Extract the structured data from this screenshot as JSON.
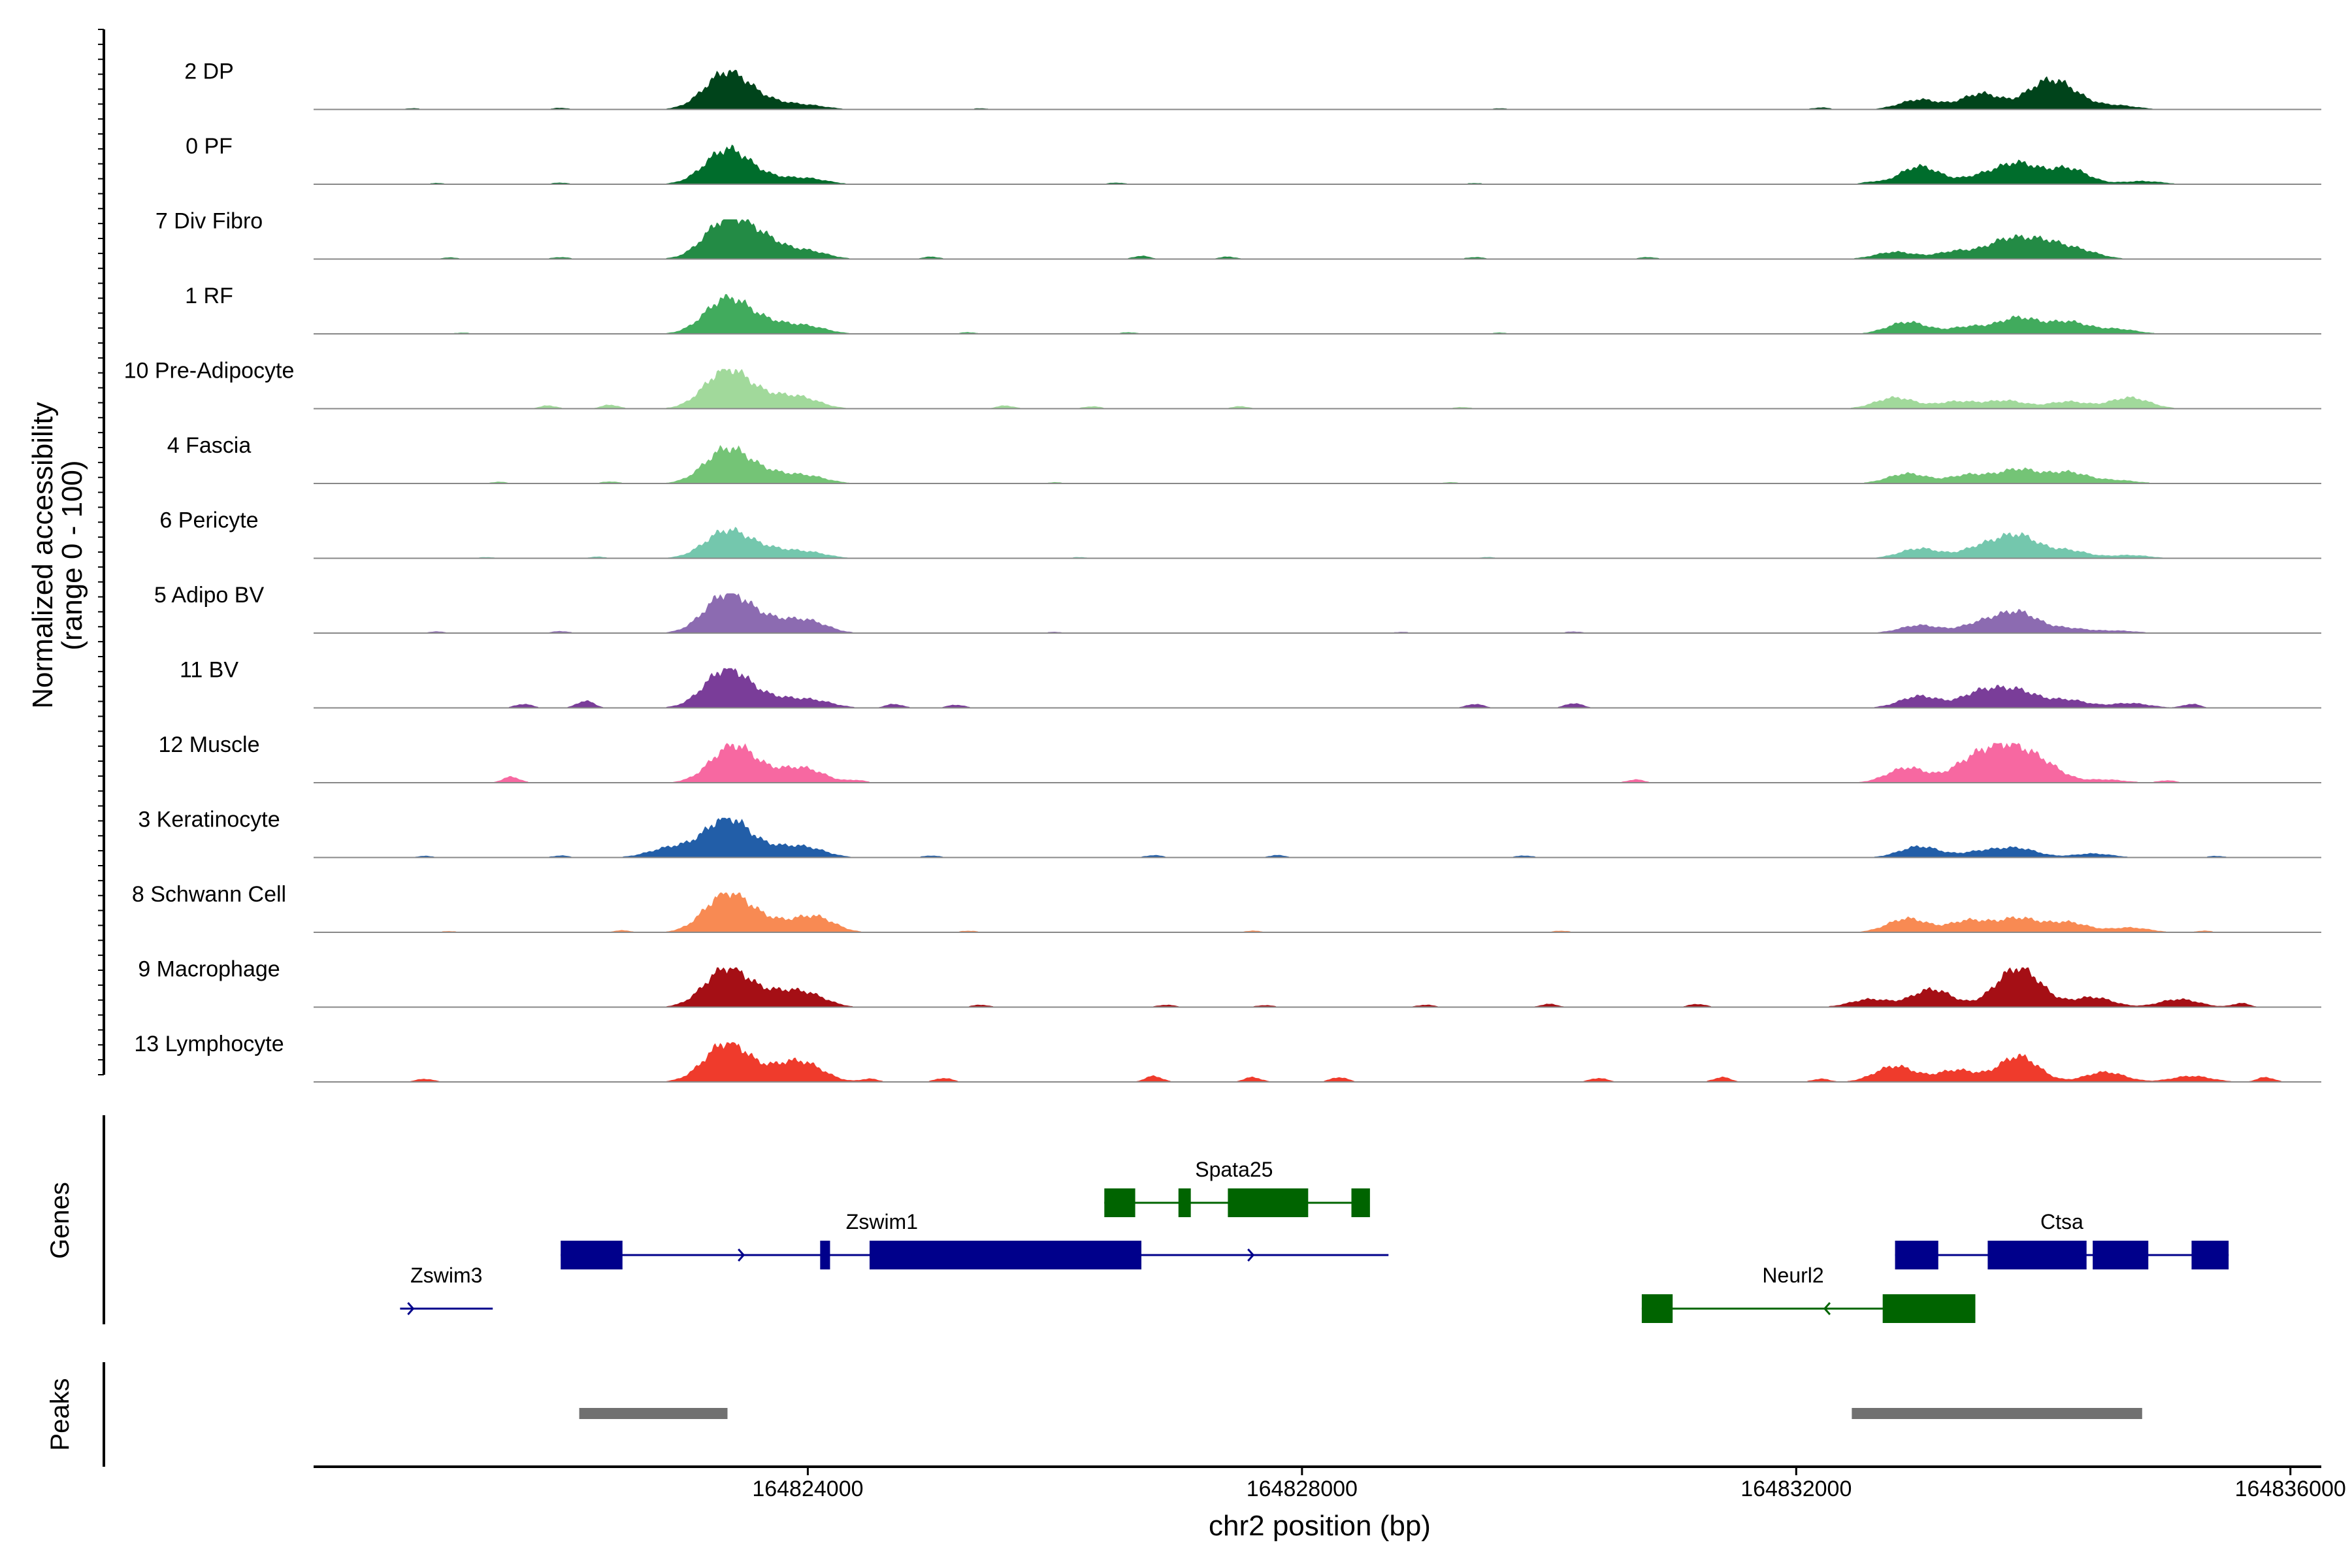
{
  "chart_data": {
    "type": "area",
    "title": "",
    "ylabel": "Normalized accessibility",
    "ylabel_sub": "(range 0 - 100)",
    "xlabel": "chr2 position (bp)",
    "xlim": [
      164820000,
      164836250
    ],
    "ylim": [
      0,
      100
    ],
    "xticks": [
      {
        "value": 164824000,
        "label": "164824000"
      },
      {
        "value": 164828000,
        "label": "164828000"
      },
      {
        "value": 164832000,
        "label": "164832000"
      },
      {
        "value": 164836000,
        "label": "164836000"
      }
    ],
    "tracks": [
      {
        "name": "2 DP",
        "color": "#00441b",
        "peaks": [
          [
            164823350,
            95
          ],
          [
            164823700,
            15
          ],
          [
            164824000,
            10
          ],
          [
            164833000,
            25
          ],
          [
            164833500,
            40
          ],
          [
            164834000,
            55
          ],
          [
            164834200,
            35
          ],
          [
            164834600,
            10
          ]
        ],
        "minor": [
          [
            164820800,
            3
          ],
          [
            164822000,
            4
          ],
          [
            164825400,
            3
          ],
          [
            164829600,
            3
          ],
          [
            164832200,
            5
          ]
        ]
      },
      {
        "name": "0 PF",
        "color": "#006d2c",
        "peaks": [
          [
            164823350,
            88
          ],
          [
            164823700,
            12
          ],
          [
            164824000,
            14
          ],
          [
            164833000,
            45
          ],
          [
            164833500,
            20
          ],
          [
            164833800,
            50
          ],
          [
            164834200,
            40
          ],
          [
            164834800,
            8
          ]
        ],
        "minor": [
          [
            164821000,
            3
          ],
          [
            164822000,
            4
          ],
          [
            164826500,
            4
          ],
          [
            164829400,
            3
          ],
          [
            164832600,
            5
          ]
        ]
      },
      {
        "name": "7 Div Fibro",
        "color": "#238b45",
        "peaks": [
          [
            164823350,
            100
          ],
          [
            164823650,
            40
          ],
          [
            164824000,
            20
          ],
          [
            164832800,
            18
          ],
          [
            164833300,
            20
          ],
          [
            164833700,
            45
          ],
          [
            164834000,
            40
          ],
          [
            164834300,
            20
          ]
        ],
        "minor": [
          [
            164821100,
            4
          ],
          [
            164822000,
            5
          ],
          [
            164825000,
            6
          ],
          [
            164826700,
            8
          ],
          [
            164827400,
            6
          ],
          [
            164829400,
            5
          ],
          [
            164830800,
            5
          ]
        ]
      },
      {
        "name": "1 RF",
        "color": "#41ab5d",
        "peaks": [
          [
            164823350,
            90
          ],
          [
            164823700,
            22
          ],
          [
            164824000,
            18
          ],
          [
            164832900,
            30
          ],
          [
            164833400,
            18
          ],
          [
            164833800,
            40
          ],
          [
            164834200,
            30
          ],
          [
            164834600,
            12
          ]
        ],
        "minor": [
          [
            164821200,
            3
          ],
          [
            164825300,
            4
          ],
          [
            164826600,
            4
          ],
          [
            164829600,
            3
          ]
        ]
      },
      {
        "name": "10 Pre-Adipocyte",
        "color": "#a1d99b",
        "peaks": [
          [
            164823350,
            100
          ],
          [
            164823700,
            20
          ],
          [
            164823950,
            25
          ],
          [
            164832800,
            28
          ],
          [
            164833300,
            18
          ],
          [
            164833700,
            20
          ],
          [
            164834200,
            18
          ],
          [
            164834700,
            28
          ]
        ],
        "minor": [
          [
            164821900,
            8
          ],
          [
            164822400,
            10
          ],
          [
            164825600,
            8
          ],
          [
            164826300,
            6
          ],
          [
            164827500,
            6
          ],
          [
            164829300,
            4
          ]
        ]
      },
      {
        "name": "4 Fascia",
        "color": "#74c476",
        "peaks": [
          [
            164823350,
            88
          ],
          [
            164823700,
            20
          ],
          [
            164824000,
            18
          ],
          [
            164832900,
            25
          ],
          [
            164833400,
            22
          ],
          [
            164833800,
            35
          ],
          [
            164834200,
            28
          ],
          [
            164834600,
            8
          ]
        ],
        "minor": [
          [
            164821500,
            4
          ],
          [
            164822400,
            5
          ],
          [
            164826000,
            3
          ],
          [
            164829200,
            3
          ]
        ]
      },
      {
        "name": "6 Pericyte",
        "color": "#74c7ad",
        "peaks": [
          [
            164823350,
            70
          ],
          [
            164823700,
            18
          ],
          [
            164824000,
            15
          ],
          [
            164833000,
            25
          ],
          [
            164833500,
            28
          ],
          [
            164833800,
            55
          ],
          [
            164834200,
            20
          ],
          [
            164834700,
            8
          ]
        ],
        "minor": [
          [
            164821400,
            3
          ],
          [
            164822300,
            4
          ],
          [
            164826200,
            3
          ],
          [
            164829500,
            3
          ]
        ]
      },
      {
        "name": "5 Adipo BV",
        "color": "#8c6bb1",
        "peaks": [
          [
            164823350,
            100
          ],
          [
            164823700,
            25
          ],
          [
            164824000,
            30
          ],
          [
            164833000,
            20
          ],
          [
            164833500,
            25
          ],
          [
            164833800,
            50
          ],
          [
            164834200,
            12
          ],
          [
            164834600,
            6
          ]
        ],
        "minor": [
          [
            164821000,
            4
          ],
          [
            164822000,
            5
          ],
          [
            164826000,
            3
          ],
          [
            164828800,
            3
          ],
          [
            164830200,
            4
          ]
        ]
      },
      {
        "name": "11 BV",
        "color": "#7a3d99",
        "peaks": [
          [
            164823350,
            100
          ],
          [
            164823750,
            20
          ],
          [
            164824050,
            18
          ],
          [
            164833000,
            30
          ],
          [
            164833500,
            40
          ],
          [
            164833800,
            40
          ],
          [
            164834200,
            20
          ],
          [
            164834700,
            12
          ]
        ],
        "minor": [
          [
            164821700,
            10
          ],
          [
            164822200,
            18
          ],
          [
            164824700,
            10
          ],
          [
            164825200,
            8
          ],
          [
            164829400,
            10
          ],
          [
            164830200,
            12
          ],
          [
            164835200,
            10
          ]
        ]
      },
      {
        "name": "12 Muscle",
        "color": "#f768a1",
        "peaks": [
          [
            164823400,
            95
          ],
          [
            164823800,
            18
          ],
          [
            164824000,
            28
          ],
          [
            164832900,
            38
          ],
          [
            164833400,
            45
          ],
          [
            164833700,
            85
          ],
          [
            164834000,
            40
          ],
          [
            164834500,
            8
          ]
        ],
        "minor": [
          [
            164821600,
            15
          ],
          [
            164824400,
            6
          ],
          [
            164830700,
            8
          ],
          [
            164835000,
            6
          ]
        ]
      },
      {
        "name": "3 Keratinocyte",
        "color": "#225ea8",
        "peaks": [
          [
            164822900,
            25
          ],
          [
            164823350,
            100
          ],
          [
            164823750,
            18
          ],
          [
            164824000,
            22
          ],
          [
            164833000,
            28
          ],
          [
            164833500,
            15
          ],
          [
            164833800,
            22
          ],
          [
            164834400,
            10
          ]
        ],
        "minor": [
          [
            164820900,
            4
          ],
          [
            164822000,
            5
          ],
          [
            164825000,
            5
          ],
          [
            164826800,
            6
          ],
          [
            164827800,
            6
          ],
          [
            164829800,
            5
          ],
          [
            164835400,
            4
          ]
        ]
      },
      {
        "name": "8 Schwann Cell",
        "color": "#f88a53",
        "peaks": [
          [
            164823350,
            100
          ],
          [
            164823700,
            22
          ],
          [
            164824050,
            40
          ],
          [
            164832900,
            35
          ],
          [
            164833400,
            30
          ],
          [
            164833800,
            35
          ],
          [
            164834200,
            25
          ],
          [
            164834700,
            12
          ]
        ],
        "minor": [
          [
            164821100,
            3
          ],
          [
            164822500,
            5
          ],
          [
            164825300,
            4
          ],
          [
            164827600,
            4
          ],
          [
            164830100,
            4
          ],
          [
            164835300,
            4
          ]
        ]
      },
      {
        "name": "9 Macrophage",
        "color": "#a50f15",
        "peaks": [
          [
            164823350,
            100
          ],
          [
            164823750,
            28
          ],
          [
            164824000,
            30
          ],
          [
            164832600,
            20
          ],
          [
            164833100,
            45
          ],
          [
            164833800,
            100
          ],
          [
            164834400,
            25
          ],
          [
            164835100,
            20
          ]
        ],
        "minor": [
          [
            164825400,
            6
          ],
          [
            164826900,
            6
          ],
          [
            164827700,
            5
          ],
          [
            164829000,
            6
          ],
          [
            164830000,
            8
          ],
          [
            164831200,
            8
          ],
          [
            164835600,
            10
          ]
        ]
      },
      {
        "name": "13 Lymphocyte",
        "color": "#ef3b2c",
        "peaks": [
          [
            164823350,
            100
          ],
          [
            164823800,
            30
          ],
          [
            164824000,
            35
          ],
          [
            164832800,
            40
          ],
          [
            164833300,
            30
          ],
          [
            164833800,
            65
          ],
          [
            164834500,
            25
          ],
          [
            164835200,
            15
          ]
        ],
        "minor": [
          [
            164820900,
            8
          ],
          [
            164824500,
            8
          ],
          [
            164825100,
            10
          ],
          [
            164826800,
            15
          ],
          [
            164827600,
            12
          ],
          [
            164828300,
            12
          ],
          [
            164830400,
            10
          ],
          [
            164831400,
            12
          ],
          [
            164832200,
            8
          ],
          [
            164835800,
            12
          ]
        ]
      }
    ],
    "genes": [
      {
        "name": "Zswim3",
        "strand": "+",
        "row": 2,
        "start": 164820700,
        "end": 164821450,
        "exons": [],
        "color": "#00008b"
      },
      {
        "name": "Zswim1",
        "strand": "+",
        "row": 1,
        "start": 164822000,
        "end": 164828700,
        "exons": [
          [
            164822000,
            164822500
          ],
          [
            164824100,
            164824180
          ],
          [
            164824500,
            164826700
          ]
        ],
        "color": "#00008b"
      },
      {
        "name": "Spata25",
        "strand": "+",
        "row": 0,
        "start": 164826400,
        "end": 164828500,
        "exons": [
          [
            164826400,
            164826650
          ],
          [
            164827000,
            164827100
          ],
          [
            164827400,
            164828050
          ],
          [
            164828400,
            164828550
          ]
        ],
        "color": "#006400"
      },
      {
        "name": "Neurl2",
        "strand": "-",
        "row": 2,
        "start": 164830750,
        "end": 164833200,
        "exons": [
          [
            164830750,
            164831000
          ],
          [
            164832700,
            164833450
          ]
        ],
        "color": "#006400"
      },
      {
        "name": "Ctsa",
        "strand": "+",
        "row": 1,
        "start": 164832800,
        "end": 164835500,
        "exons": [
          [
            164832800,
            164833150
          ],
          [
            164833550,
            164834350
          ],
          [
            164834400,
            164834850
          ],
          [
            164835200,
            164835500
          ]
        ],
        "color": "#00008b"
      }
    ],
    "peaks_track": [
      [
        164822150,
        164823350
      ],
      [
        164832450,
        164834800
      ]
    ],
    "panel_labels": {
      "genes": "Genes",
      "peaks": "Peaks"
    }
  }
}
